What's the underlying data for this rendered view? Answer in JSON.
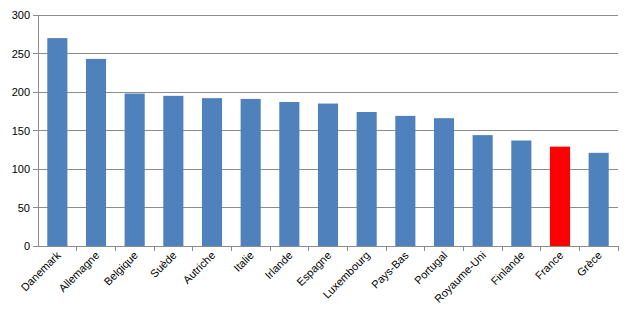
{
  "chart_data": {
    "type": "bar",
    "categories": [
      "Danemark",
      "Allemagne",
      "Belgique",
      "Suède",
      "Autriche",
      "Italie",
      "Irlande",
      "Espagne",
      "Luxembourg",
      "Pays-Bas",
      "Portugal",
      "Royaume-Uni",
      "Finlande",
      "France",
      "Grèce"
    ],
    "values": [
      270,
      243,
      198,
      195,
      192,
      191,
      187,
      185,
      174,
      169,
      166,
      144,
      137,
      129,
      121
    ],
    "colors": [
      "#4f81bd",
      "#4f81bd",
      "#4f81bd",
      "#4f81bd",
      "#4f81bd",
      "#4f81bd",
      "#4f81bd",
      "#4f81bd",
      "#4f81bd",
      "#4f81bd",
      "#4f81bd",
      "#4f81bd",
      "#4f81bd",
      "#ff0000",
      "#4f81bd"
    ],
    "ylim": [
      0,
      300
    ],
    "yticks": [
      0,
      50,
      100,
      150,
      200,
      250,
      300
    ],
    "grid": true
  }
}
